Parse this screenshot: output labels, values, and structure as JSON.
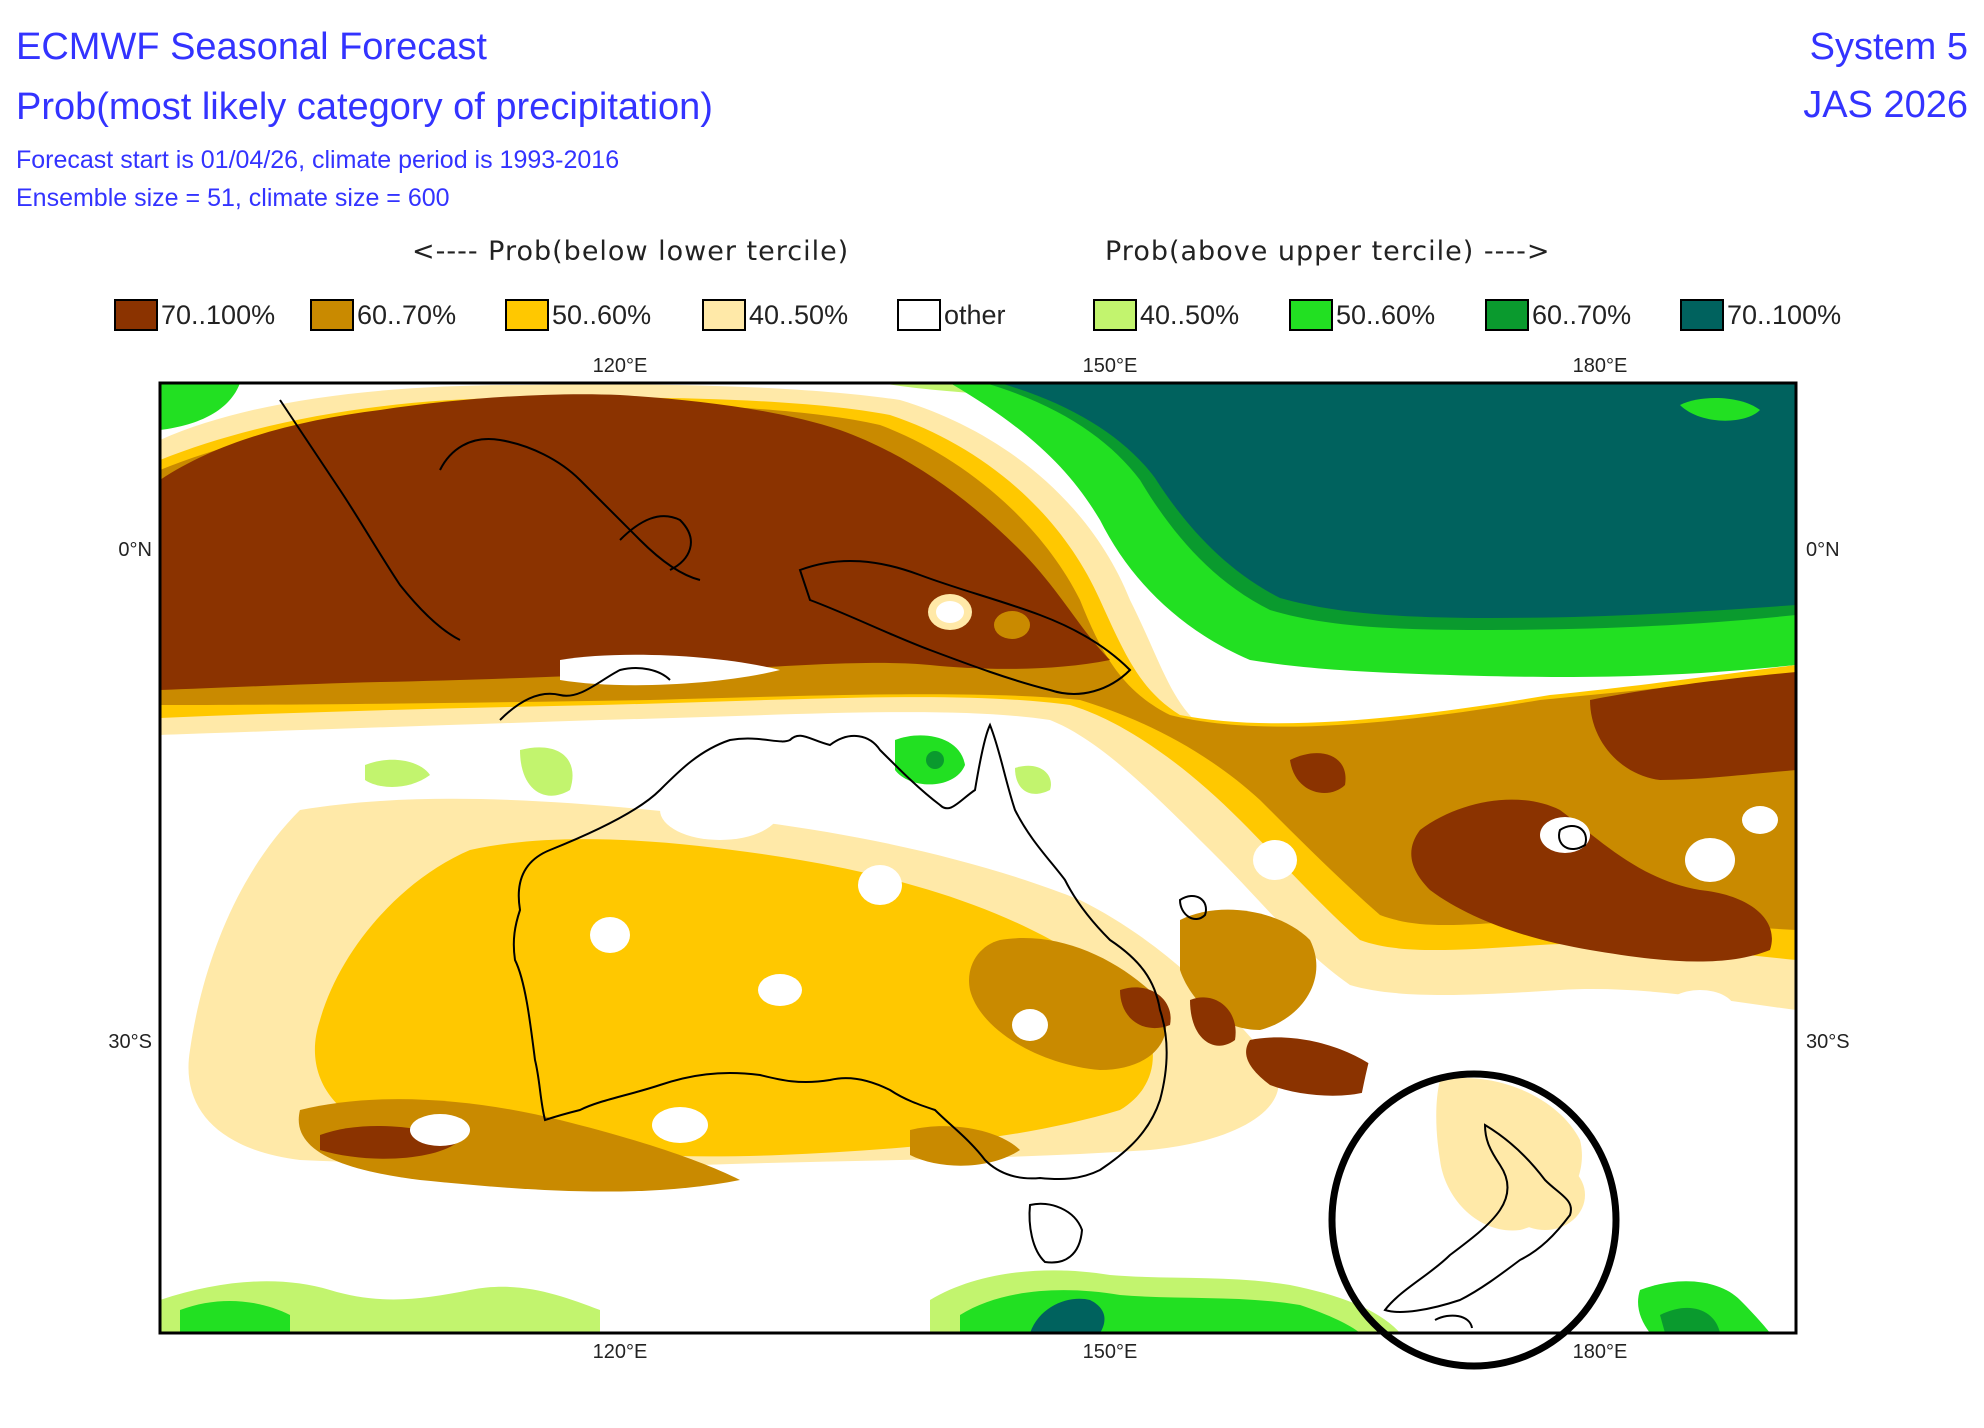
{
  "header": {
    "title_line1": "ECMWF Seasonal Forecast",
    "title_line2": "Prob(most likely category of precipitation)",
    "subtitle_line1": "Forecast start is 01/04/26, climate period is 1993-2016",
    "subtitle_line2": "Ensemble size = 51, climate size = 600",
    "system": "System 5",
    "season": "JAS 2026"
  },
  "direction_labels": {
    "below": "<---- Prob(below lower tercile)",
    "above": "Prob(above upper tercile) ---->"
  },
  "legend": [
    {
      "label": "70..100%",
      "color": "#8b3300"
    },
    {
      "label": "60..70%",
      "color": "#c98a00"
    },
    {
      "label": "50..60%",
      "color": "#ffc800"
    },
    {
      "label": "40..50%",
      "color": "#ffe9a8"
    },
    {
      "label": "other",
      "color": "#ffffff"
    },
    {
      "label": "40..50%",
      "color": "#c2f46e"
    },
    {
      "label": "50..60%",
      "color": "#22e022"
    },
    {
      "label": "60..70%",
      "color": "#0a9a2e"
    },
    {
      "label": "70..100%",
      "color": "#00625e"
    }
  ],
  "map": {
    "lon_labels": [
      "120°E",
      "150°E",
      "180°E"
    ],
    "lat_labels": [
      "0°N",
      "30°S"
    ],
    "annotation": "circle-around-new-zealand"
  }
}
